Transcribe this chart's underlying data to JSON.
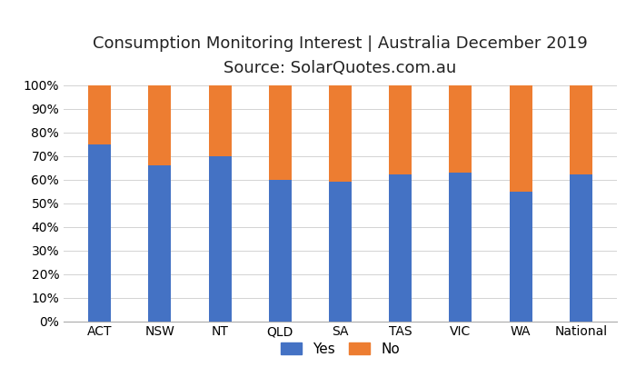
{
  "categories": [
    "ACT",
    "NSW",
    "NT",
    "QLD",
    "SA",
    "TAS",
    "VIC",
    "WA",
    "National"
  ],
  "yes_values": [
    75,
    66,
    70,
    60,
    59,
    62,
    63,
    55,
    62
  ],
  "no_values": [
    25,
    34,
    30,
    40,
    41,
    38,
    37,
    45,
    38
  ],
  "yes_color": "#4472C4",
  "no_color": "#ED7D31",
  "title_line1": "Consumption Monitoring Interest | Australia December 2019",
  "title_line2": "Source: SolarQuotes.com.au",
  "ylabel_ticks": [
    "0%",
    "10%",
    "20%",
    "30%",
    "40%",
    "50%",
    "60%",
    "70%",
    "80%",
    "90%",
    "100%"
  ],
  "ytick_values": [
    0,
    10,
    20,
    30,
    40,
    50,
    60,
    70,
    80,
    90,
    100
  ],
  "legend_yes": "Yes",
  "legend_no": "No",
  "background_color": "#FFFFFF",
  "grid_color": "#D3D3D3",
  "title_fontsize": 13,
  "subtitle_fontsize": 13,
  "tick_fontsize": 10,
  "legend_fontsize": 11,
  "bar_width": 0.38
}
